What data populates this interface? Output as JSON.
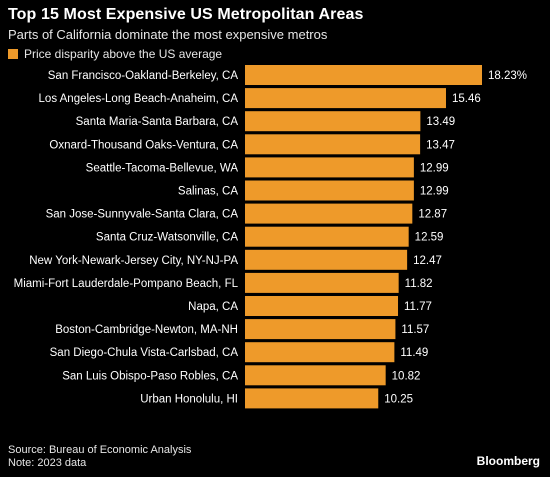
{
  "header": {
    "title": "Top 15 Most Expensive US Metropolitan Areas",
    "subtitle": "Parts of California dominate the most expensive metros"
  },
  "legend": {
    "label": "Price disparity above the US average",
    "color": "#ee9a2a"
  },
  "chart_data": {
    "type": "bar",
    "orientation": "horizontal",
    "categories": [
      "San Francisco-Oakland-Berkeley, CA",
      "Los Angeles-Long Beach-Anaheim, CA",
      "Santa Maria-Santa Barbara, CA",
      "Oxnard-Thousand Oaks-Ventura, CA",
      "Seattle-Tacoma-Bellevue, WA",
      "Salinas, CA",
      "San Jose-Sunnyvale-Santa Clara, CA",
      "Santa Cruz-Watsonville, CA",
      "New York-Newark-Jersey City, NY-NJ-PA",
      "Miami-Fort Lauderdale-Pompano Beach, FL",
      "Napa, CA",
      "Boston-Cambridge-Newton, MA-NH",
      "San Diego-Chula Vista-Carlsbad, CA",
      "San Luis Obispo-Paso Robles, CA",
      "Urban Honolulu, HI"
    ],
    "series": [
      {
        "name": "Price disparity above the US average",
        "values": [
          18.23,
          15.46,
          13.49,
          13.47,
          12.99,
          12.99,
          12.87,
          12.59,
          12.47,
          11.82,
          11.77,
          11.57,
          11.49,
          10.82,
          10.25
        ],
        "data_labels": [
          "18.23%",
          "15.46",
          "13.49",
          "13.47",
          "12.99",
          "12.99",
          "12.87",
          "12.59",
          "12.47",
          "11.82",
          "11.77",
          "11.57",
          "11.49",
          "10.82",
          "10.25"
        ]
      }
    ],
    "xlim": [
      0,
      18.23
    ],
    "grid": false,
    "bar_color": "#ee9a2a"
  },
  "footer": {
    "source": "Source: Bureau of Economic Analysis",
    "note": "Note: 2023 data",
    "brand": "Bloomberg"
  }
}
